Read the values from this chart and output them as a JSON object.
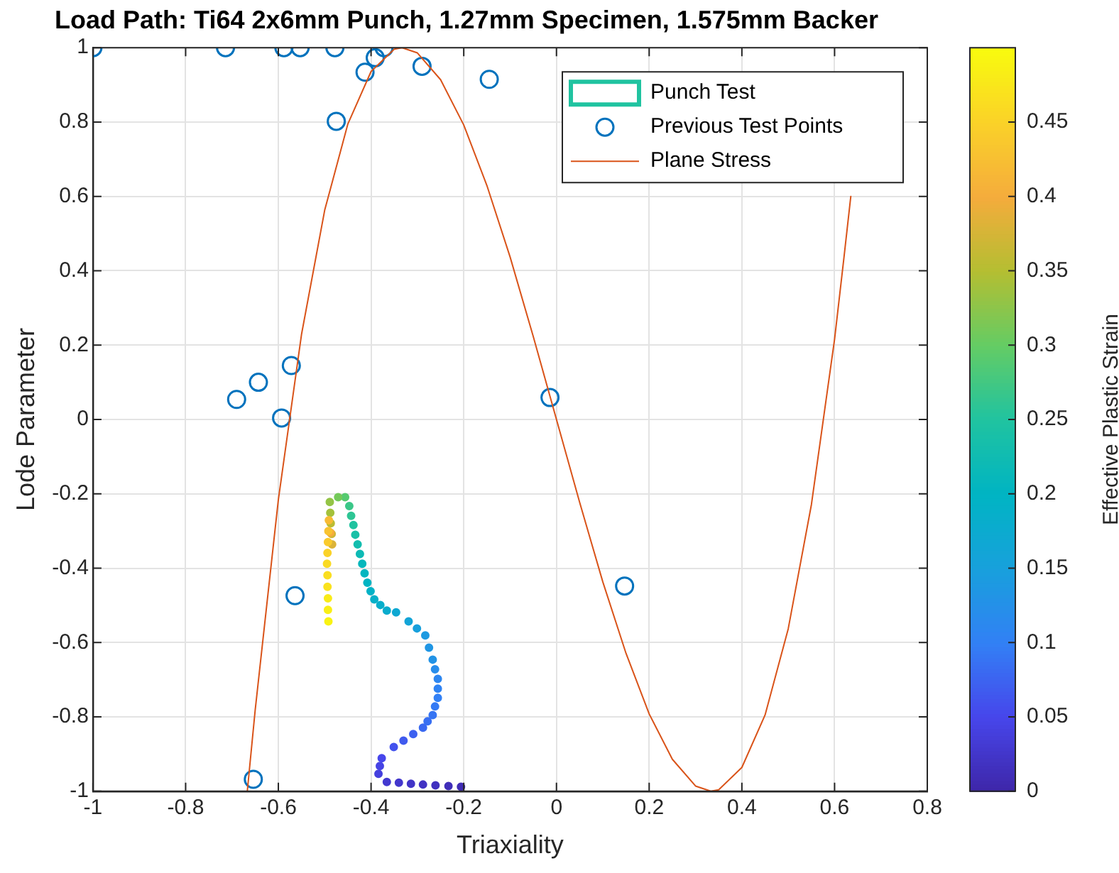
{
  "chart_data": {
    "type": "line",
    "title": "Load Path: Ti64 2x6mm Punch, 1.27mm Specimen, 1.575mm Backer",
    "xlabel": "Triaxiality",
    "ylabel": "Lode Parameter",
    "clabel": "Effective Plastic Strain",
    "xlim": [
      -1,
      0.8
    ],
    "xticks": [
      -1,
      -0.8,
      -0.6,
      -0.4,
      -0.2,
      0,
      0.2,
      0.4,
      0.6,
      0.8
    ],
    "ylim": [
      -1,
      1
    ],
    "yticks": [
      -1,
      -0.8,
      -0.6,
      -0.4,
      -0.2,
      0,
      0.2,
      0.4,
      0.6,
      0.8,
      1
    ],
    "clim": [
      0,
      0.5
    ],
    "cticks": [
      0,
      0.05,
      0.1,
      0.15,
      0.2,
      0.25,
      0.3,
      0.35,
      0.4,
      0.45
    ],
    "grid": true,
    "legend": "top right",
    "series": [
      {
        "name": "Punch Test",
        "type": "scatter",
        "marker": "circle",
        "colors": [
          "#402cb5",
          "#402eb9",
          "#4131bf",
          "#4233c3",
          "#4235c7",
          "#4337cc",
          "#4339d0",
          "#4540de",
          "#4643e4",
          "#4746eb",
          "#4352ed",
          "#405aee",
          "#3d61f0",
          "#3a69f1",
          "#386ff2",
          "#3674f3",
          "#347af4",
          "#3280f5",
          "#2f83f3",
          "#2d86f0",
          "#288deb",
          "#2293e6",
          "#2096e4",
          "#1d9ae1",
          "#18a0dc",
          "#13a4d7",
          "#0ea8d2",
          "#0aaccd",
          "#07aecb",
          "#05b0c8",
          "#02b2c6",
          "#00b4c3",
          "#03b6c0",
          "#06b7bc",
          "#0dbab5",
          "#13bdae",
          "#1ac0a7",
          "#20c3a0",
          "#2ec594",
          "#3bc788",
          "#56ca70",
          "#74c95a",
          "#94c446",
          "#a4c13c",
          "#bbbc33",
          "#ceb736",
          "#dbb338",
          "#f5ac3c",
          "#f7bb34",
          "#f8c330",
          "#f9ca2c",
          "#fad228",
          "#fada23",
          "#fade20",
          "#fae21e",
          "#f9eb18",
          "#f9ef16",
          "#f9f313"
        ],
        "x": [
          -0.206,
          -0.233,
          -0.261,
          -0.288,
          -0.314,
          -0.34,
          -0.366,
          -0.384,
          -0.381,
          -0.377,
          -0.351,
          -0.33,
          -0.309,
          -0.288,
          -0.278,
          -0.267,
          -0.262,
          -0.256,
          -0.256,
          -0.256,
          -0.262,
          -0.267,
          -0.275,
          -0.283,
          -0.301,
          -0.319,
          -0.346,
          -0.366,
          -0.38,
          -0.393,
          -0.401,
          -0.408,
          -0.414,
          -0.419,
          -0.424,
          -0.429,
          -0.434,
          -0.438,
          -0.443,
          -0.447,
          -0.456,
          -0.471,
          -0.489,
          -0.488,
          -0.487,
          -0.485,
          -0.484,
          -0.488,
          -0.491,
          -0.492,
          -0.493,
          -0.494,
          -0.495,
          -0.494,
          -0.494,
          -0.493,
          -0.493,
          -0.492
        ],
        "values": [
          -0.988,
          -0.986,
          -0.984,
          -0.982,
          -0.98,
          -0.977,
          -0.975,
          -0.953,
          -0.932,
          -0.911,
          -0.881,
          -0.864,
          -0.846,
          -0.829,
          -0.812,
          -0.795,
          -0.772,
          -0.749,
          -0.724,
          -0.698,
          -0.672,
          -0.646,
          -0.614,
          -0.581,
          -0.562,
          -0.543,
          -0.519,
          -0.514,
          -0.499,
          -0.484,
          -0.462,
          -0.439,
          -0.414,
          -0.388,
          -0.362,
          -0.336,
          -0.31,
          -0.284,
          -0.259,
          -0.233,
          -0.209,
          -0.209,
          -0.222,
          -0.251,
          -0.279,
          -0.308,
          -0.336,
          -0.304,
          -0.271,
          -0.3,
          -0.33,
          -0.359,
          -0.388,
          -0.419,
          -0.45,
          -0.481,
          -0.512,
          -0.543
        ],
        "cvalues": [
          0.01,
          0.013,
          0.017,
          0.02,
          0.023,
          0.027,
          0.03,
          0.04,
          0.045,
          0.05,
          0.06,
          0.067,
          0.073,
          0.08,
          0.085,
          0.09,
          0.095,
          0.1,
          0.105,
          0.11,
          0.12,
          0.13,
          0.135,
          0.14,
          0.15,
          0.16,
          0.17,
          0.18,
          0.185,
          0.19,
          0.195,
          0.2,
          0.205,
          0.21,
          0.22,
          0.23,
          0.24,
          0.25,
          0.26,
          0.27,
          0.29,
          0.31,
          0.33,
          0.34,
          0.355,
          0.37,
          0.38,
          0.4,
          0.42,
          0.43,
          0.44,
          0.45,
          0.46,
          0.465,
          0.47,
          0.48,
          0.485,
          0.49
        ]
      },
      {
        "name": "Previous Test Points",
        "type": "scatter",
        "color": "#0072bd",
        "marker": "circle",
        "x": [
          -1,
          -0.714,
          -0.588,
          -0.553,
          -0.478,
          -0.372,
          -0.391,
          -0.413,
          -0.29,
          -0.145,
          -0.475,
          -0.69,
          -0.643,
          -0.572,
          -0.593,
          -0.564,
          -0.654,
          -0.014,
          0.147
        ],
        "values": [
          1,
          1,
          1,
          1,
          1,
          1,
          0.973,
          0.934,
          0.95,
          0.915,
          0.802,
          0.054,
          0.1,
          0.145,
          0.004,
          -0.474,
          -0.968,
          0.059,
          -0.448
        ]
      },
      {
        "name": "Plane Stress",
        "color": "#d95319",
        "x": [
          -0.667,
          -0.65,
          -0.6,
          -0.55,
          -0.5,
          -0.45,
          -0.4,
          -0.35,
          -0.333,
          -0.3,
          -0.25,
          -0.2,
          -0.15,
          -0.1,
          -0.05,
          0,
          0.05,
          0.1,
          0.15,
          0.2,
          0.25,
          0.3,
          0.333,
          0.35,
          0.4,
          0.45,
          0.5,
          0.55,
          0.6,
          0.62,
          0.635
        ],
        "values": [
          -1,
          -0.782,
          -0.216,
          0.229,
          0.563,
          0.795,
          0.936,
          0.996,
          1,
          0.986,
          0.914,
          0.792,
          0.629,
          0.437,
          0.223,
          0,
          -0.223,
          -0.437,
          -0.629,
          -0.792,
          -0.914,
          -0.986,
          -1,
          -0.996,
          -0.936,
          -0.795,
          -0.563,
          -0.229,
          0.216,
          0.433,
          0.6
        ]
      }
    ]
  }
}
